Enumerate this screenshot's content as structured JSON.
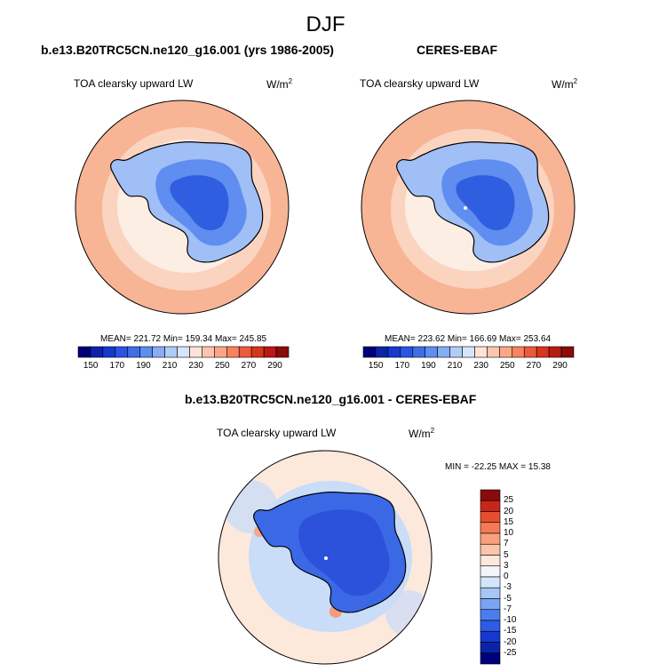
{
  "page": {
    "title": "DJF"
  },
  "panels": [
    {
      "title": "b.e13.B20TRC5CN.ne120_g16.001 (yrs 1986-2005)",
      "variable": "TOA clearsky upward LW",
      "units_base": "W/m",
      "units_exp": "2",
      "stats": "MEAN= 221.72  Min= 159.34  Max= 245.85"
    },
    {
      "title": "CERES-EBAF",
      "variable": "TOA clearsky upward LW",
      "units_base": "W/m",
      "units_exp": "2",
      "stats": "MEAN= 223.62  Min= 166.69  Max= 253.64"
    },
    {
      "title": "b.e13.B20TRC5CN.ne120_g16.001 - CERES-EBAF",
      "variable": "TOA clearsky upward LW",
      "units_base": "W/m",
      "units_exp": "2",
      "stats": "MIN = -22.25 MAX =  15.38"
    }
  ],
  "colors": {
    "abs_palette": [
      "#00007a",
      "#0a23a8",
      "#1738d0",
      "#2a55e4",
      "#3f6ee8",
      "#5e8ef0",
      "#86aef4",
      "#b0ccf8",
      "#d6e5fa",
      "#fde4d8",
      "#fcc6ad",
      "#fba787",
      "#f7835f",
      "#ee5a3a",
      "#d9341f",
      "#b91a12",
      "#8a0b0b"
    ],
    "diff_palette": [
      "#00007a",
      "#0a23a8",
      "#1738d0",
      "#2d5ce6",
      "#4a7eee",
      "#7aa4f3",
      "#a7c6f7",
      "#d3e5fb",
      "#f3f5f9",
      "#fde7db",
      "#fcc5aa",
      "#fa9f7d",
      "#f47a53",
      "#e4502f",
      "#c8261a",
      "#8a0b0b"
    ],
    "ocean_abs": "#f7b596",
    "mid_ring_abs": "#fbd4c0",
    "ice_edge_abs": "#fdeee4",
    "ant_dark": "#2f5ee0",
    "ant_mid": "#5f8df0",
    "ant_light": "#9fbff6",
    "diff_ocean": "#fde8dc",
    "diff_near": "#c9dcf8",
    "diff_ant": "#3b69e6",
    "diff_ant_dark": "#2749d6"
  },
  "chart_data": [
    {
      "type": "heatmap",
      "title": "b.e13.B20TRC5CN.ne120_g16.001 (yrs 1986-2005)",
      "variable": "TOA clearsky upward LW",
      "units": "W/m2",
      "projection": "south polar stereographic",
      "mean": 221.72,
      "min": 159.34,
      "max": 245.85,
      "colorbar_ticks": [
        150,
        170,
        190,
        210,
        230,
        250,
        270,
        290
      ],
      "colorbar_range": [
        140,
        300
      ]
    },
    {
      "type": "heatmap",
      "title": "CERES-EBAF",
      "variable": "TOA clearsky upward LW",
      "units": "W/m2",
      "projection": "south polar stereographic",
      "mean": 223.62,
      "min": 166.69,
      "max": 253.64,
      "colorbar_ticks": [
        150,
        170,
        190,
        210,
        230,
        250,
        270,
        290
      ],
      "colorbar_range": [
        140,
        300
      ]
    },
    {
      "type": "heatmap",
      "title": "b.e13.B20TRC5CN.ne120_g16.001 - CERES-EBAF",
      "variable": "TOA clearsky upward LW",
      "units": "W/m2",
      "projection": "south polar stereographic",
      "min": -22.25,
      "max": 15.38,
      "colorbar_ticks": [
        "25",
        "20",
        "15",
        "10",
        "7",
        "5",
        "3",
        "0",
        "-3",
        "-5",
        "-7",
        "-10",
        "-15",
        "-20",
        "-25"
      ],
      "colorbar_orientation": "vertical"
    }
  ]
}
